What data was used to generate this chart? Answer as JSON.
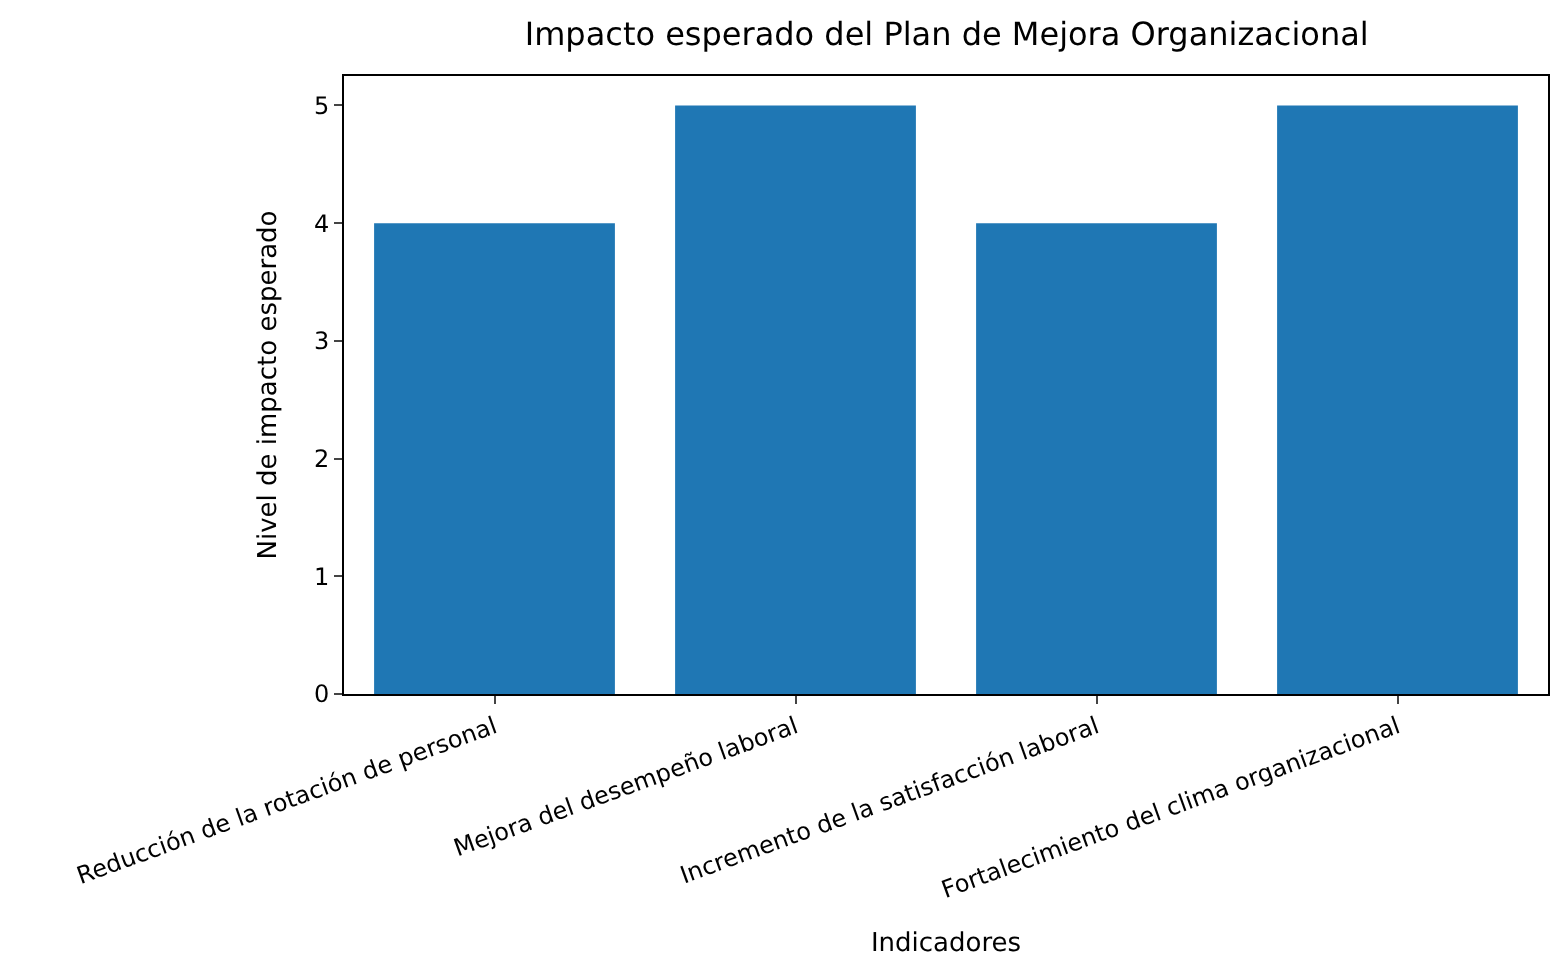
{
  "chart_data": {
    "type": "bar",
    "title": "Impacto esperado del Plan de Mejora Organizacional",
    "xlabel": "Indicadores",
    "ylabel": "Nivel de impacto esperado",
    "categories": [
      "Reducción de la rotación de personal",
      "Mejora del desempeño laboral",
      "Incremento de la satisfacción laboral",
      "Fortalecimiento del clima organizacional"
    ],
    "values": [
      4,
      5,
      4,
      5
    ],
    "color": "#1f77b4",
    "ylim": [
      0,
      5.25
    ],
    "yticks": [
      0,
      1,
      2,
      3,
      4,
      5
    ],
    "grid": false
  }
}
